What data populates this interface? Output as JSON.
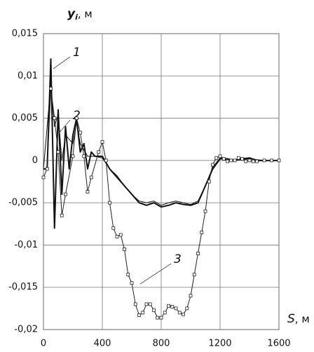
{
  "chart_data": {
    "type": "line",
    "y_label": {
      "symbol": "y",
      "subscript": "i",
      "unit": ", м"
    },
    "x_label": {
      "symbol": "S",
      "unit": ", м"
    },
    "xlim": [
      0,
      1600
    ],
    "xticks": [
      0,
      400,
      800,
      1200,
      1600
    ],
    "ylim": [
      -0.02,
      0.015
    ],
    "yticks": [
      {
        "value": 0.015,
        "label": "0,015"
      },
      {
        "value": 0.01,
        "label": "0,01"
      },
      {
        "value": 0.005,
        "label": "0,005"
      },
      0,
      {
        "value": -0.005,
        "label": "-0,005"
      },
      {
        "value": -0.01,
        "label": "-0,01"
      },
      {
        "value": -0.015,
        "label": "-0,015"
      },
      {
        "value": -0.02,
        "label": "-0,02"
      }
    ],
    "grid": true,
    "series": [
      {
        "name": "1",
        "color": "#111111",
        "width": 2,
        "markers": "none",
        "x": [
          0,
          25,
          50,
          75,
          100,
          125,
          150,
          175,
          200,
          225,
          250,
          275,
          300,
          325,
          350,
          400,
          450,
          500,
          550,
          600,
          650,
          700,
          750,
          800,
          850,
          900,
          950,
          1000,
          1050,
          1100,
          1150,
          1200,
          1250,
          1300,
          1350,
          1400,
          1450,
          1500,
          1550,
          1600
        ],
        "values": [
          -0.001,
          -0.001,
          0.012,
          -0.008,
          0.006,
          -0.004,
          0.004,
          -0.001,
          0.003,
          0.005,
          0.001,
          0.002,
          -0.001,
          0.001,
          0.0005,
          0.0005,
          -0.001,
          -0.002,
          -0.003,
          -0.004,
          -0.005,
          -0.0053,
          -0.005,
          -0.0055,
          -0.0053,
          -0.005,
          -0.0052,
          -0.0053,
          -0.005,
          -0.003,
          -0.001,
          0.0002,
          0.0002,
          0,
          0.0002,
          0.0003,
          0,
          0,
          0,
          0
        ]
      },
      {
        "name": "2",
        "color": "#111111",
        "width": 1,
        "markers": "none",
        "x": [
          0,
          50,
          75,
          100,
          125,
          150,
          200,
          225,
          250,
          300,
          350,
          400,
          450,
          500,
          550,
          600,
          650,
          700,
          750,
          800,
          850,
          900,
          950,
          1000,
          1050,
          1100,
          1150,
          1200,
          1250,
          1300,
          1400,
          1500,
          1600
        ],
        "values": [
          -0.001,
          0.009,
          0.004,
          0.0055,
          0,
          0.003,
          0.002,
          0.0045,
          0.002,
          0.0005,
          0.0005,
          0.0003,
          -0.001,
          -0.0018,
          -0.003,
          -0.004,
          -0.0048,
          -0.005,
          -0.0048,
          -0.0053,
          -0.005,
          -0.0048,
          -0.005,
          -0.0052,
          -0.0048,
          -0.003,
          -0.0008,
          0.0003,
          0.0002,
          0,
          0.0002,
          0,
          0
        ]
      },
      {
        "name": "3",
        "color": "#222222",
        "width": 1,
        "markers": "square",
        "x": [
          0,
          25,
          50,
          75,
          100,
          125,
          150,
          200,
          225,
          250,
          275,
          300,
          325,
          375,
          400,
          425,
          450,
          475,
          500,
          525,
          550,
          575,
          600,
          625,
          650,
          675,
          700,
          725,
          750,
          775,
          800,
          825,
          850,
          875,
          900,
          925,
          950,
          975,
          1000,
          1025,
          1050,
          1075,
          1100,
          1125,
          1150,
          1175,
          1200,
          1225,
          1250,
          1275,
          1300,
          1325,
          1350,
          1375,
          1400,
          1425,
          1450,
          1500,
          1550,
          1600
        ],
        "values": [
          -0.002,
          -0.001,
          0.0085,
          0.005,
          0.001,
          -0.0065,
          -0.004,
          0.0005,
          0.005,
          0.0033,
          0.0005,
          -0.0037,
          -0.002,
          0.001,
          0.0022,
          0,
          -0.005,
          -0.008,
          -0.009,
          -0.0088,
          -0.0105,
          -0.0135,
          -0.0145,
          -0.017,
          -0.0183,
          -0.018,
          -0.017,
          -0.017,
          -0.0177,
          -0.0186,
          -0.0186,
          -0.018,
          -0.0172,
          -0.0173,
          -0.0175,
          -0.018,
          -0.0182,
          -0.0175,
          -0.016,
          -0.0135,
          -0.011,
          -0.0085,
          -0.006,
          -0.0025,
          -0.0005,
          0.0003,
          0.0005,
          0.0002,
          -0.0001,
          0,
          0,
          0.0003,
          0.0002,
          -0.0001,
          0,
          -0.0001,
          -0.0001,
          0,
          0,
          0
        ]
      }
    ]
  }
}
